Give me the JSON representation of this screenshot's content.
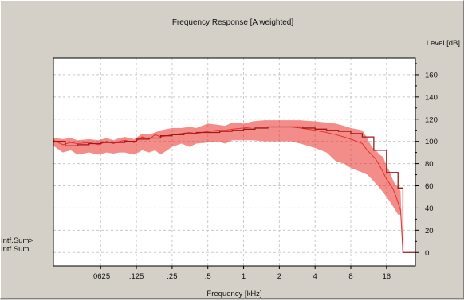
{
  "chart_data": {
    "type": "line",
    "title": "Frequency Response [A weighted]",
    "xlabel": "Frequency [kHz]",
    "ylabel": "Level [dB]",
    "x_scale": "log2",
    "x_ticks": [
      ".0625",
      ".125",
      ".25",
      ".5",
      "1",
      "2",
      "4",
      "8",
      "16"
    ],
    "x_tick_values": [
      0.0625,
      0.125,
      0.25,
      0.5,
      1,
      2,
      4,
      8,
      16
    ],
    "xlim": [
      0.025,
      28
    ],
    "y_ticks": [
      "0",
      "20",
      "40",
      "60",
      "80",
      "100",
      "120",
      "140",
      "160"
    ],
    "ylim": [
      -12,
      175
    ],
    "grid": true,
    "legend_position": "left-outside-bottom",
    "background": "#ffffff",
    "series": [
      {
        "name": "Intf.Sum>",
        "color": "#a01818",
        "style": "third-octave-steps",
        "x": [
          0.025,
          0.0315,
          0.04,
          0.05,
          0.063,
          0.08,
          0.1,
          0.125,
          0.16,
          0.2,
          0.25,
          0.315,
          0.4,
          0.5,
          0.63,
          0.8,
          1,
          1.25,
          1.6,
          2,
          2.5,
          3.15,
          4,
          5,
          6.3,
          8,
          10,
          12.5,
          16,
          20,
          22
        ],
        "values": [
          100,
          96,
          97,
          98,
          99,
          99,
          100,
          102,
          103,
          105,
          106,
          107,
          108,
          108,
          109,
          110,
          111,
          112,
          113,
          113,
          113,
          112,
          111,
          110,
          109,
          107,
          104,
          92,
          72,
          58,
          0
        ]
      },
      {
        "name": "Intf.Sum",
        "color": "#e8302a",
        "style": "fine-resolution",
        "x": [
          0.025,
          0.03,
          0.035,
          0.04,
          0.05,
          0.06,
          0.07,
          0.08,
          0.09,
          0.1,
          0.12,
          0.14,
          0.16,
          0.18,
          0.2,
          0.25,
          0.3,
          0.35,
          0.4,
          0.5,
          0.6,
          0.7,
          0.8,
          1,
          1.2,
          1.5,
          2,
          2.5,
          3,
          4,
          5,
          6,
          7,
          8,
          10,
          11,
          12,
          13,
          14,
          15,
          16,
          17,
          18,
          19,
          20,
          21,
          22
        ],
        "values": [
          101,
          97,
          99,
          98,
          99,
          97,
          100,
          98,
          100,
          101,
          99,
          104,
          102,
          106,
          104,
          106,
          107,
          108,
          107,
          109,
          110,
          110,
          111,
          112,
          113,
          113,
          113,
          113,
          112,
          110,
          108,
          106,
          104,
          102,
          98,
          92,
          88,
          84,
          78,
          72,
          66,
          62,
          58,
          52,
          45,
          38,
          0
        ],
        "min_envelope": [
          96,
          90,
          92,
          88,
          90,
          88,
          90,
          89,
          90,
          90,
          88,
          92,
          90,
          92,
          88,
          95,
          98,
          95,
          98,
          99,
          100,
          98,
          101,
          101,
          101,
          100,
          100,
          100,
          98,
          94,
          90,
          82,
          80,
          76,
          72,
          70,
          66,
          62,
          58,
          54,
          50,
          46,
          42,
          38,
          34,
          34,
          0
        ],
        "max_envelope": [
          103,
          102,
          103,
          101,
          102,
          101,
          103,
          101,
          103,
          104,
          102,
          107,
          106,
          108,
          110,
          112,
          112,
          113,
          112,
          116,
          115,
          114,
          117,
          116,
          118,
          119,
          119,
          119,
          119,
          118,
          117,
          116,
          114,
          112,
          110,
          103,
          95,
          92,
          88,
          86,
          78,
          73,
          66,
          61,
          60,
          55,
          0
        ]
      }
    ]
  }
}
